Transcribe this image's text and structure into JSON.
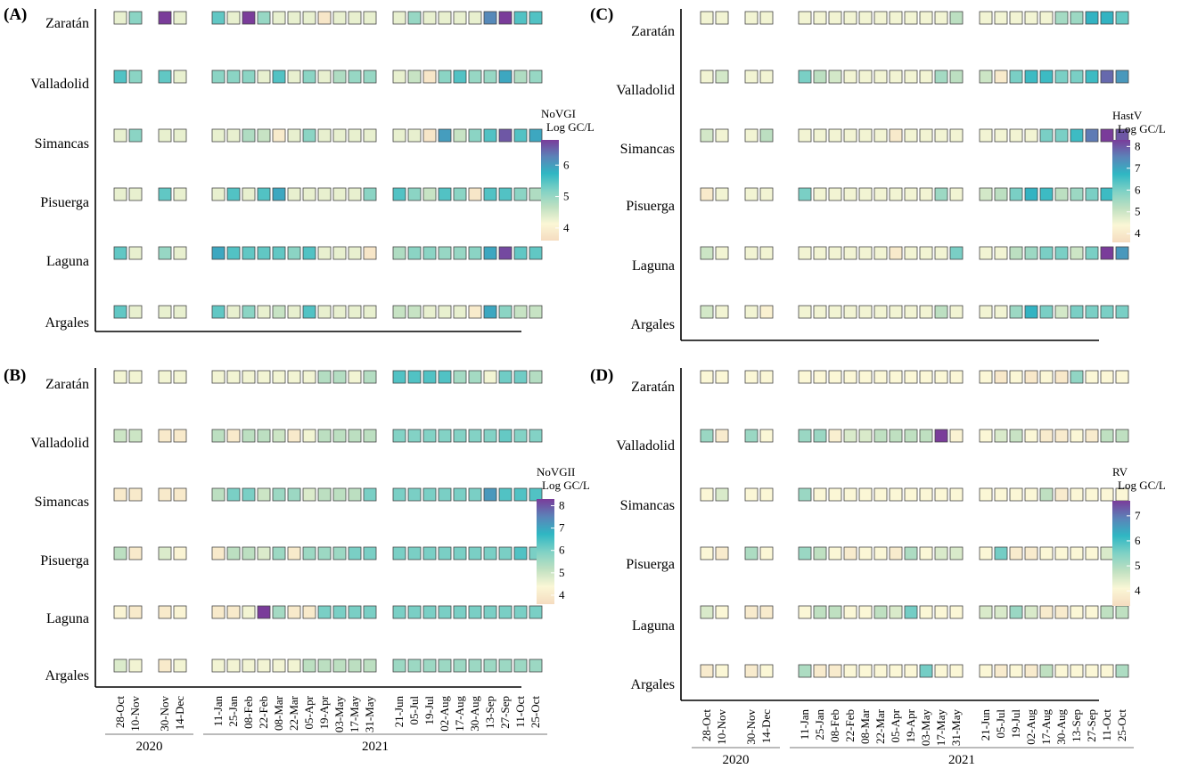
{
  "figure": {
    "sites": [
      "Zaratán",
      "Valladolid",
      "Simancas",
      "Pisuerga",
      "Laguna",
      "Argales"
    ],
    "dates": [
      "28-Oct",
      "10-Nov",
      "30-Nov",
      "14-Dec",
      "11-Jan",
      "25-Jan",
      "08-Feb",
      "22-Feb",
      "08-Mar",
      "22-Mar",
      "05-Apr",
      "19-Apr",
      "03-May",
      "17-May",
      "31-May",
      "21-Jun",
      "05-Jul",
      "19-Jul",
      "02-Aug",
      "17-Aug",
      "30-Aug",
      "13-Sep",
      "27-Sep",
      "11-Oct",
      "25-Oct"
    ],
    "years": [
      "2020",
      "2021"
    ],
    "color_scale": [
      "#f5dcc0",
      "#fbf7d6",
      "#bfe0c1",
      "#7fd1c5",
      "#2fb7c3",
      "#5b83b8",
      "#7a3c9a"
    ]
  },
  "chart_data": [
    {
      "type": "heatmap",
      "panel": "(A)",
      "legend_title": "NoVGI Log GC/L",
      "legend_ticks": [
        4,
        5,
        6
      ],
      "vmin": 3.6,
      "vmax": 6.8,
      "values": [
        [
          4.3,
          5.1,
          6.8,
          4.3,
          5.4,
          4.3,
          6.8,
          5.0,
          4.3,
          4.3,
          4.3,
          3.8,
          4.3,
          4.3,
          4.3,
          4.3,
          5.0,
          4.3,
          4.3,
          4.3,
          4.3,
          6.2,
          6.8,
          5.5,
          5.5
        ],
        [
          5.5,
          5.1,
          5.4,
          4.3,
          5.1,
          5.1,
          5.1,
          4.3,
          5.5,
          4.3,
          5.1,
          4.3,
          4.8,
          5.0,
          5.0,
          4.3,
          4.6,
          3.8,
          5.1,
          5.5,
          5.0,
          5.0,
          5.9,
          4.8,
          5.0
        ],
        [
          4.3,
          5.1,
          4.3,
          4.3,
          4.3,
          4.3,
          4.8,
          4.6,
          3.9,
          4.3,
          5.1,
          4.3,
          4.3,
          4.3,
          4.3,
          4.3,
          4.3,
          3.8,
          6.0,
          4.6,
          5.1,
          5.5,
          6.6,
          5.5,
          5.9
        ],
        [
          4.3,
          4.3,
          5.4,
          4.3,
          4.3,
          5.5,
          4.3,
          5.5,
          5.9,
          4.3,
          4.3,
          4.3,
          4.3,
          4.3,
          5.1,
          5.5,
          5.1,
          4.6,
          5.5,
          5.1,
          3.8,
          5.5,
          5.5,
          5.1,
          4.8
        ],
        [
          5.4,
          4.3,
          5.0,
          4.3,
          5.9,
          5.5,
          5.4,
          5.4,
          5.4,
          5.1,
          5.5,
          4.3,
          4.3,
          4.3,
          3.8,
          4.8,
          5.1,
          5.1,
          5.0,
          5.0,
          5.1,
          5.9,
          6.7,
          5.4,
          5.4
        ],
        [
          5.4,
          4.3,
          4.3,
          4.3,
          5.4,
          4.3,
          5.1,
          4.3,
          4.6,
          4.3,
          5.5,
          4.3,
          4.3,
          4.3,
          4.3,
          4.6,
          4.6,
          4.3,
          4.3,
          4.3,
          3.9,
          5.9,
          5.1,
          4.6,
          4.6
        ]
      ]
    },
    {
      "type": "heatmap",
      "panel": "(B)",
      "legend_title": "NoVGII Log GC/L",
      "legend_ticks": [
        4,
        5,
        6,
        7,
        8
      ],
      "vmin": 3.6,
      "vmax": 8.3,
      "values": [
        [
          4.5,
          4.5,
          4.5,
          4.5,
          4.5,
          4.5,
          4.5,
          4.5,
          4.5,
          4.5,
          4.5,
          5.3,
          5.3,
          4.5,
          5.3,
          6.4,
          6.4,
          6.4,
          6.4,
          5.5,
          5.5,
          4.5,
          6.1,
          6.1,
          5.3
        ],
        [
          5.0,
          5.0,
          4.0,
          4.0,
          5.2,
          4.0,
          5.2,
          5.2,
          5.0,
          4.0,
          4.5,
          5.2,
          5.2,
          5.2,
          5.2,
          5.9,
          5.9,
          5.9,
          5.9,
          5.9,
          5.9,
          5.9,
          6.2,
          5.9,
          5.9
        ],
        [
          4.0,
          4.0,
          4.0,
          4.0,
          5.2,
          6.0,
          6.0,
          5.0,
          5.6,
          5.6,
          4.8,
          5.2,
          5.2,
          5.2,
          6.0,
          6.0,
          6.0,
          6.0,
          6.0,
          6.0,
          6.0,
          7.2,
          6.4,
          6.4,
          6.4
        ],
        [
          5.2,
          4.0,
          4.8,
          4.3,
          4.0,
          5.2,
          5.2,
          4.8,
          5.6,
          4.0,
          5.6,
          5.6,
          5.6,
          6.0,
          6.0,
          6.0,
          6.0,
          6.0,
          6.0,
          6.0,
          6.0,
          6.0,
          6.0,
          6.4,
          6.0
        ],
        [
          4.3,
          4.0,
          4.0,
          4.3,
          4.0,
          4.0,
          4.5,
          8.3,
          5.5,
          4.0,
          4.0,
          6.0,
          6.0,
          6.0,
          6.0,
          6.0,
          6.0,
          6.0,
          6.0,
          6.0,
          6.0,
          6.0,
          6.0,
          6.0,
          6.0
        ],
        [
          4.8,
          4.5,
          4.0,
          4.5,
          4.5,
          4.5,
          4.5,
          4.5,
          4.5,
          4.5,
          5.2,
          5.2,
          5.2,
          5.2,
          5.2,
          5.6,
          5.6,
          5.6,
          5.6,
          5.6,
          5.6,
          5.6,
          5.6,
          5.6,
          5.6
        ]
      ]
    },
    {
      "type": "heatmap",
      "panel": "(C)",
      "legend_title": "HastV Log GC/L",
      "legend_ticks": [
        4,
        5,
        6,
        7,
        8
      ],
      "vmin": 3.6,
      "vmax": 8.3,
      "values": [
        [
          4.5,
          4.5,
          4.5,
          4.5,
          4.5,
          4.5,
          4.5,
          4.5,
          4.5,
          4.5,
          4.5,
          4.5,
          4.5,
          4.5,
          5.2,
          4.5,
          4.5,
          4.5,
          4.5,
          4.5,
          5.5,
          5.6,
          6.8,
          6.8,
          6.2
        ],
        [
          4.5,
          4.9,
          4.5,
          4.5,
          6.0,
          5.2,
          4.9,
          4.5,
          4.5,
          4.5,
          4.5,
          4.5,
          4.5,
          5.5,
          5.2,
          5.0,
          4.0,
          6.0,
          6.6,
          6.6,
          6.0,
          6.0,
          6.6,
          7.8,
          7.2
        ],
        [
          4.9,
          4.5,
          4.5,
          5.2,
          4.5,
          4.5,
          4.5,
          4.5,
          4.5,
          4.5,
          4.0,
          4.5,
          4.5,
          4.5,
          4.5,
          4.5,
          4.5,
          4.5,
          4.5,
          6.0,
          6.0,
          6.6,
          7.6,
          8.3,
          8.0
        ],
        [
          4.0,
          4.5,
          4.5,
          4.5,
          6.0,
          4.5,
          4.5,
          4.5,
          4.5,
          4.5,
          4.5,
          4.5,
          4.5,
          5.6,
          4.5,
          4.9,
          5.2,
          6.0,
          6.8,
          6.6,
          5.2,
          5.6,
          6.0,
          6.6,
          6.6
        ],
        [
          5.0,
          4.5,
          4.5,
          4.5,
          4.5,
          4.5,
          4.5,
          4.5,
          4.5,
          4.5,
          4.0,
          4.5,
          4.5,
          4.5,
          6.0,
          4.5,
          4.5,
          5.2,
          5.6,
          6.0,
          6.0,
          5.0,
          6.0,
          8.3,
          7.2
        ],
        [
          4.9,
          4.5,
          4.5,
          4.2,
          4.5,
          4.5,
          4.5,
          4.5,
          4.5,
          4.5,
          4.5,
          4.5,
          4.5,
          5.2,
          4.5,
          4.5,
          4.5,
          5.6,
          6.8,
          6.0,
          4.9,
          6.0,
          6.0,
          6.0,
          6.0
        ]
      ]
    },
    {
      "type": "heatmap",
      "panel": "(D)",
      "legend_title": "RV Log GC/L",
      "legend_ticks": [
        4,
        5,
        6,
        7
      ],
      "vmin": 3.4,
      "vmax": 7.6,
      "values": [
        [
          4.1,
          4.1,
          4.1,
          4.1,
          4.1,
          4.1,
          4.1,
          4.1,
          4.1,
          4.1,
          4.1,
          4.1,
          4.1,
          4.1,
          4.1,
          4.1,
          3.7,
          4.1,
          3.7,
          4.1,
          3.7,
          5.3,
          4.1,
          4.1,
          4.1
        ],
        [
          5.2,
          3.8,
          5.2,
          4.1,
          5.2,
          5.2,
          3.9,
          4.5,
          4.5,
          4.8,
          4.8,
          4.8,
          4.8,
          7.6,
          4.0,
          4.1,
          4.5,
          4.7,
          4.1,
          3.8,
          3.8,
          4.1,
          3.8,
          4.8,
          4.8
        ],
        [
          4.1,
          4.5,
          4.1,
          4.1,
          5.2,
          4.1,
          4.1,
          4.1,
          4.1,
          4.1,
          4.1,
          4.1,
          4.1,
          4.1,
          4.1,
          4.1,
          4.1,
          4.1,
          4.1,
          4.8,
          3.8,
          4.1,
          4.1,
          4.1,
          4.1
        ],
        [
          4.1,
          3.8,
          5.0,
          4.1,
          5.2,
          4.8,
          4.1,
          3.8,
          4.1,
          4.1,
          3.8,
          5.0,
          4.1,
          4.5,
          4.5,
          4.1,
          5.6,
          3.8,
          3.8,
          4.1,
          4.1,
          4.1,
          4.1,
          4.5,
          4.5
        ],
        [
          4.5,
          4.1,
          3.8,
          3.8,
          4.1,
          4.8,
          4.8,
          4.1,
          4.1,
          4.8,
          4.5,
          5.6,
          4.1,
          4.1,
          4.1,
          4.5,
          4.5,
          5.2,
          4.5,
          3.8,
          3.8,
          4.1,
          4.1,
          4.8,
          4.8
        ],
        [
          3.8,
          4.1,
          3.8,
          4.1,
          5.0,
          3.8,
          3.8,
          4.1,
          4.1,
          4.1,
          4.1,
          4.1,
          5.6,
          4.1,
          4.1,
          4.1,
          3.8,
          4.1,
          3.8,
          4.8,
          4.1,
          4.1,
          4.1,
          4.1,
          5.0
        ]
      ]
    }
  ]
}
